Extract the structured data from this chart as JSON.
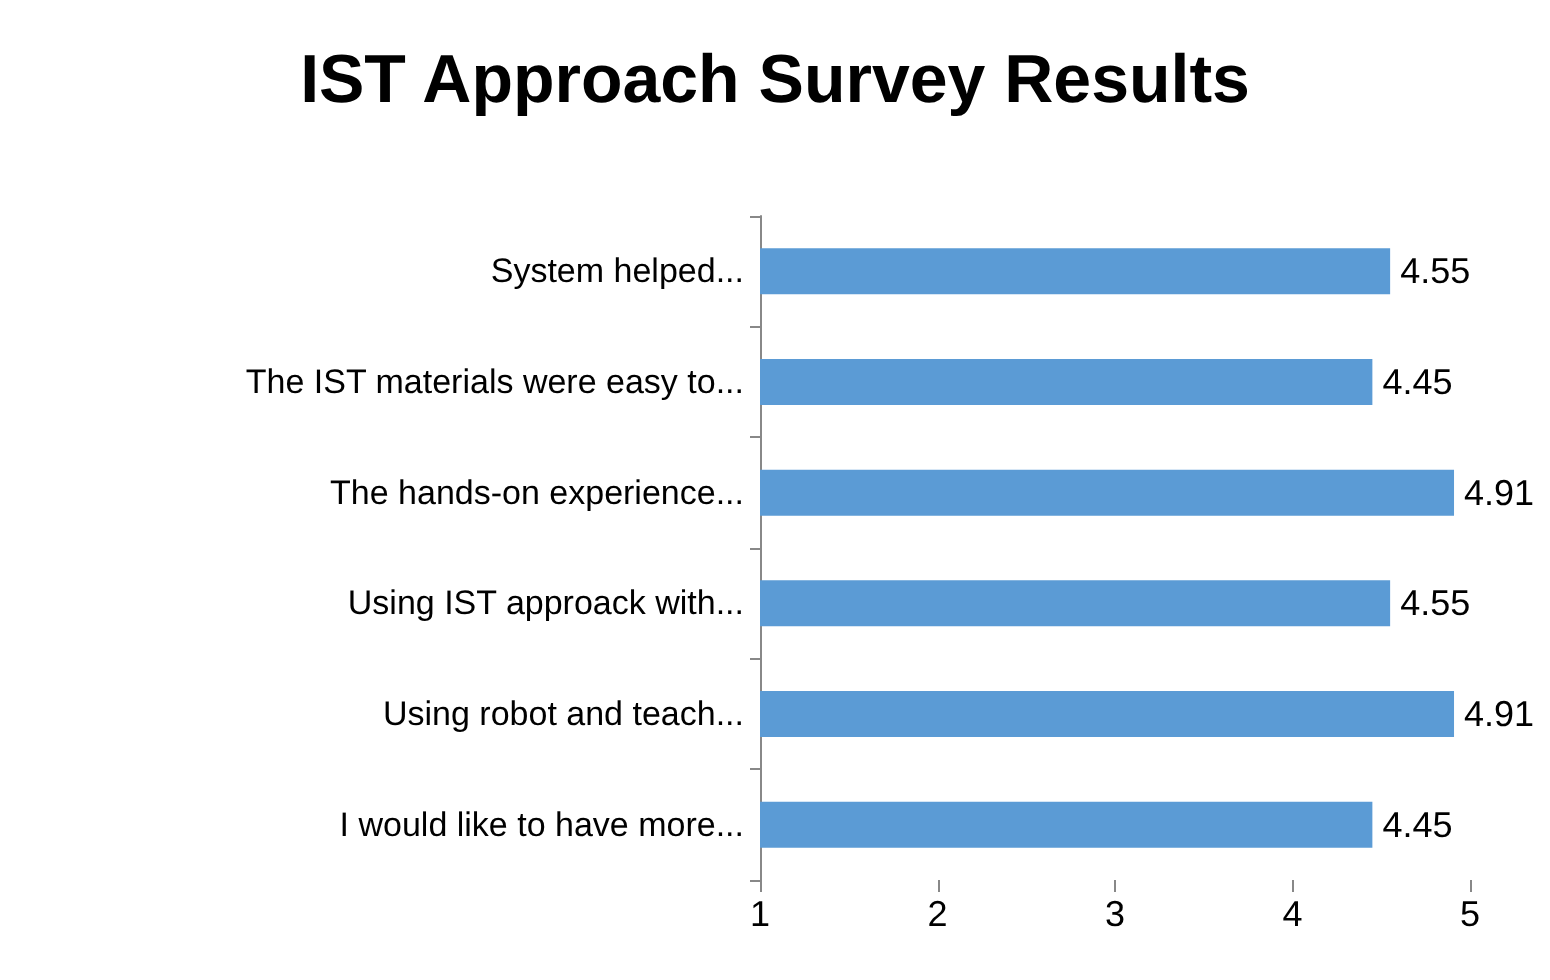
{
  "chart_data": {
    "type": "bar",
    "orientation": "horizontal",
    "title": "IST Approach Survey Results",
    "categories": [
      "System helped...",
      "The IST materials were easy to...",
      "The hands-on experience...",
      "Using IST approack with...",
      "Using robot and teach...",
      "I would like to have more..."
    ],
    "values": [
      4.55,
      4.45,
      4.91,
      4.55,
      4.91,
      4.45
    ],
    "color": "#5b9bd5",
    "xlim": [
      1,
      5
    ],
    "xticks": [
      1,
      2,
      3,
      4,
      5
    ],
    "grid": false,
    "data_labels": true
  }
}
